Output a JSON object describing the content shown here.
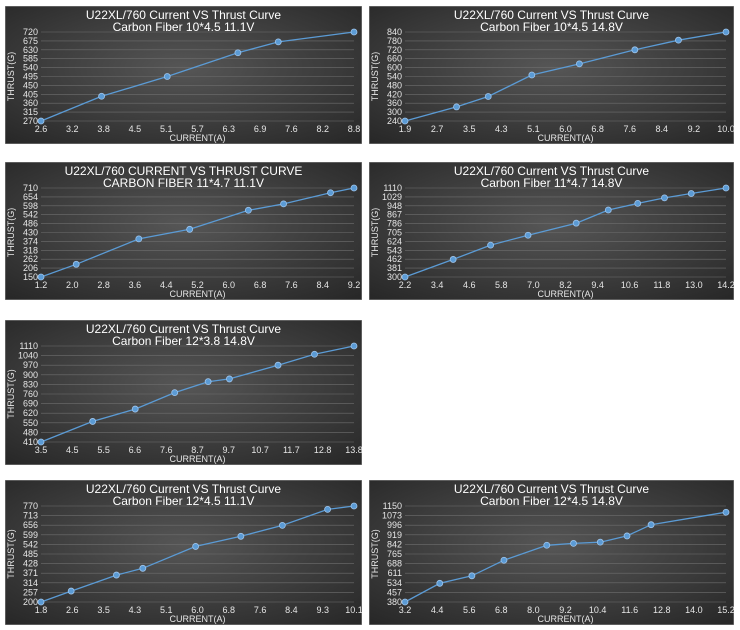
{
  "chart_data": [
    {
      "type": "line",
      "title": "U22XL/760 Current VS Thrust Curve",
      "subtitle": "Carbon Fiber 10*4.5   11.1V",
      "xlabel": "CURRENT(A)",
      "ylabel": "THRUST(G)",
      "x_ticks": [
        "2.6",
        "3.2",
        "3.8",
        "4.5",
        "5.1",
        "5.7",
        "6.3",
        "6.9",
        "7.6",
        "8.2",
        "8.8"
      ],
      "y_ticks": [
        "270",
        "315",
        "360",
        "405",
        "450",
        "495",
        "540",
        "585",
        "630",
        "675",
        "720"
      ],
      "xlim": [
        2.6,
        8.8
      ],
      "ylim": [
        270,
        720
      ],
      "series": [
        {
          "x": [
            2.6,
            3.8,
            5.1,
            6.5,
            7.3,
            8.8
          ],
          "y": [
            270,
            395,
            495,
            615,
            670,
            720
          ]
        }
      ],
      "colors": {
        "line": "#5b9bd5"
      }
    },
    {
      "type": "line",
      "title": "U22XL/760 Current VS Thrust Curve",
      "subtitle": "Carbon Fiber  10*4.5   14.8V",
      "xlabel": "CURRENT(A)",
      "ylabel": "THRUST(G)",
      "x_ticks": [
        "1.9",
        "2.7",
        "3.5",
        "4.3",
        "5.1",
        "6.0",
        "6.8",
        "7.6",
        "8.4",
        "9.2",
        "10.0"
      ],
      "y_ticks": [
        "240",
        "300",
        "360",
        "420",
        "480",
        "540",
        "600",
        "660",
        "720",
        "780",
        "840"
      ],
      "xlim": [
        1.9,
        10.0
      ],
      "ylim": [
        240,
        840
      ],
      "series": [
        {
          "x": [
            1.9,
            3.2,
            4.0,
            5.1,
            6.3,
            7.7,
            8.8,
            10.0
          ],
          "y": [
            240,
            335,
            405,
            550,
            625,
            720,
            785,
            840
          ]
        }
      ],
      "colors": {
        "line": "#5b9bd5"
      }
    },
    {
      "type": "line",
      "title": "U22XL/760 CURRENT VS THRUST CURVE",
      "subtitle": "CARBON FIBER 11*4.7  11.1V",
      "xlabel": "CURRENT(A)",
      "ylabel": "THRUST(G)",
      "x_ticks": [
        "1.2",
        "2.0",
        "2.8",
        "3.6",
        "4.4",
        "5.2",
        "6.0",
        "6.8",
        "7.6",
        "8.4",
        "9.2"
      ],
      "y_ticks": [
        "150",
        "206",
        "262",
        "318",
        "374",
        "430",
        "486",
        "542",
        "598",
        "654",
        "710"
      ],
      "xlim": [
        1.2,
        9.2
      ],
      "ylim": [
        150,
        710
      ],
      "series": [
        {
          "x": [
            1.2,
            2.1,
            3.7,
            5.0,
            6.5,
            7.4,
            8.6,
            9.2
          ],
          "y": [
            150,
            230,
            390,
            450,
            570,
            610,
            680,
            710
          ]
        }
      ],
      "colors": {
        "line": "#5b9bd5"
      }
    },
    {
      "type": "line",
      "title": "U22XL/760 Current VS Thrust Curve",
      "subtitle": "Carbon Fiber 11*4.7  14.8V",
      "xlabel": "CURRENT(A)",
      "ylabel": "THRUST(G)",
      "x_ticks": [
        "2.2",
        "3.4",
        "4.6",
        "5.8",
        "7.0",
        "8.2",
        "9.4",
        "10.6",
        "11.8",
        "13.0",
        "14.2"
      ],
      "y_ticks": [
        "300",
        "381",
        "462",
        "543",
        "624",
        "705",
        "786",
        "867",
        "948",
        "1029",
        "1110"
      ],
      "xlim": [
        2.2,
        14.2
      ],
      "ylim": [
        300,
        1110
      ],
      "series": [
        {
          "x": [
            2.2,
            4.0,
            5.4,
            6.8,
            8.6,
            9.8,
            10.9,
            11.9,
            12.9,
            14.2
          ],
          "y": [
            300,
            460,
            590,
            680,
            790,
            910,
            970,
            1020,
            1060,
            1110
          ]
        }
      ],
      "colors": {
        "line": "#5b9bd5"
      }
    },
    {
      "type": "line",
      "title": "U22XL/760 Current VS Thrust Curve",
      "subtitle": "Carbon Fiber 12*3.8  14.8V",
      "xlabel": "CURRENT(A)",
      "ylabel": "THRUST(G)",
      "x_ticks": [
        "3.5",
        "4.5",
        "5.5",
        "6.6",
        "7.6",
        "8.7",
        "9.7",
        "10.7",
        "11.7",
        "12.8",
        "13.8"
      ],
      "y_ticks": [
        "410",
        "480",
        "550",
        "620",
        "690",
        "760",
        "830",
        "900",
        "970",
        "1040",
        "1110"
      ],
      "xlim": [
        3.5,
        13.8
      ],
      "ylim": [
        410,
        1110
      ],
      "series": [
        {
          "x": [
            3.5,
            5.2,
            6.6,
            7.9,
            9.0,
            9.7,
            11.3,
            12.5,
            13.8
          ],
          "y": [
            410,
            560,
            650,
            770,
            850,
            870,
            970,
            1050,
            1110
          ]
        }
      ],
      "colors": {
        "line": "#5b9bd5"
      }
    },
    {
      "type": "line",
      "title": "U22XL/760 Current VS Thrust Curve",
      "subtitle": "Carbon Fiber 12*4.5   11.1V",
      "xlabel": "CURRENT(A)",
      "ylabel": "THRUST(G)",
      "x_ticks": [
        "1.8",
        "2.6",
        "3.5",
        "4.3",
        "5.1",
        "6.0",
        "6.8",
        "7.6",
        "8.4",
        "9.3",
        "10.1"
      ],
      "y_ticks": [
        "200",
        "257",
        "314",
        "371",
        "428",
        "485",
        "542",
        "599",
        "656",
        "713",
        "770"
      ],
      "xlim": [
        1.8,
        10.1
      ],
      "ylim": [
        200,
        770
      ],
      "series": [
        {
          "x": [
            1.8,
            2.6,
            3.8,
            4.5,
            5.9,
            7.1,
            8.2,
            9.4,
            10.1
          ],
          "y": [
            200,
            265,
            360,
            400,
            530,
            590,
            655,
            750,
            770
          ]
        }
      ],
      "colors": {
        "line": "#5b9bd5"
      }
    },
    {
      "type": "line",
      "title": "U22XL/760 Current VS Thrust Curve",
      "subtitle": "Carbon Fiber 12*4.5   14.8V",
      "xlabel": "CURRENT(A)",
      "ylabel": "THRUST(G)",
      "x_ticks": [
        "3.2",
        "4.4",
        "5.6",
        "6.8",
        "8.0",
        "9.2",
        "10.4",
        "11.6",
        "12.8",
        "14.0",
        "15.2"
      ],
      "y_ticks": [
        "380",
        "457",
        "534",
        "611",
        "688",
        "765",
        "842",
        "919",
        "996",
        "1073",
        "1150"
      ],
      "xlim": [
        3.2,
        15.2
      ],
      "ylim": [
        380,
        1150
      ],
      "series": [
        {
          "x": [
            3.2,
            4.5,
            5.7,
            6.9,
            8.5,
            9.5,
            10.5,
            11.5,
            12.4,
            15.2
          ],
          "y": [
            380,
            530,
            590,
            715,
            835,
            850,
            860,
            910,
            1000,
            1100
          ]
        }
      ],
      "colors": {
        "line": "#5b9bd5"
      }
    }
  ]
}
